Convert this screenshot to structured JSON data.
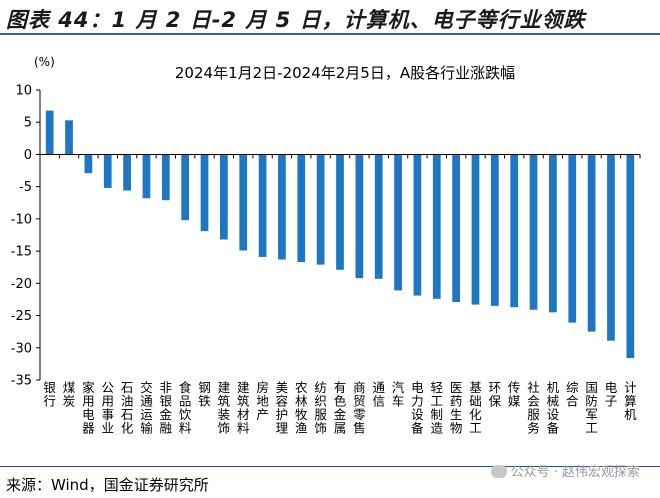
{
  "header": {
    "title": "图表 44：1 月 2 日-2 月 5 日，计算机、电子等行业领跌"
  },
  "footer": {
    "source": "来源：Wind，国金证券研究所",
    "watermark": "公众号 · 赵伟宏观探索"
  },
  "colors": {
    "bar": "#1f77c4",
    "accent": "#2e63a8"
  },
  "chart_data": {
    "type": "bar",
    "title": "2024年1月2日-2024年2月5日，A股各行业涨跌幅",
    "ylabel": "(%)",
    "ylim": [
      -35,
      10
    ],
    "yticks": [
      10,
      5,
      0,
      -5,
      -10,
      -15,
      -20,
      -25,
      -30,
      -35
    ],
    "grid": false,
    "categories": [
      "银行",
      "煤炭",
      "家用电器",
      "公用事业",
      "石油石化",
      "交通运输",
      "非银金融",
      "食品饮料",
      "钢铁",
      "建筑装饰",
      "建筑材料",
      "房地产",
      "美容护理",
      "农林牧渔",
      "纺织服饰",
      "有色金属",
      "商贸零售",
      "通信",
      "汽车",
      "电力设备",
      "轻工制造",
      "医药生物",
      "基础化工",
      "环保",
      "传媒",
      "社会服务",
      "机械设备",
      "综合",
      "国防军工",
      "电子",
      "计算机"
    ],
    "values": [
      6.8,
      5.3,
      -2.9,
      -5.2,
      -5.6,
      -6.8,
      -7.1,
      -10.2,
      -11.9,
      -13.2,
      -14.9,
      -15.9,
      -16.3,
      -16.7,
      -17.1,
      -17.9,
      -19.2,
      -19.3,
      -21.1,
      -21.9,
      -22.4,
      -22.9,
      -23.3,
      -23.5,
      -23.7,
      -24.1,
      -24.5,
      -26.1,
      -27.5,
      -28.9,
      -31.6
    ]
  }
}
